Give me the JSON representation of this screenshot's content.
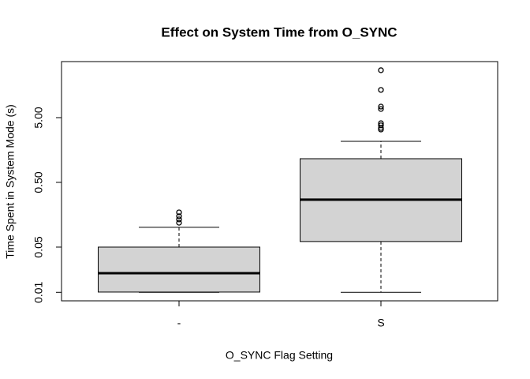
{
  "chart_data": {
    "type": "box",
    "title": "Effect on System Time from O_SYNC",
    "x_label": "O_SYNC Flag Setting",
    "y_label": "Time Spent in System Mode (s)",
    "categories": [
      "-",
      "S"
    ],
    "boxes": [
      {
        "min": 0.01,
        "q1": 0.0101,
        "median": 0.0198,
        "q3": 0.05,
        "max": 0.101,
        "outliers": [
          0.172,
          0.15,
          0.134,
          0.119
        ]
      },
      {
        "min": 0.01,
        "q1": 0.061,
        "median": 0.27,
        "q3": 1.16,
        "max": 2.15,
        "outliers": [
          27,
          13.4,
          7.4,
          6.8,
          4.1,
          3.8,
          3.46,
          3.28
        ]
      }
    ],
    "color": "#d3d3d3",
    "log_y": true,
    "ylim": [
      0.0074,
      36.7
    ],
    "yticks": [
      0.01,
      0.05,
      {
        "value": 0.5,
        "label": "0.50"
      },
      {
        "value": 5,
        "label": "5.00"
      }
    ]
  }
}
